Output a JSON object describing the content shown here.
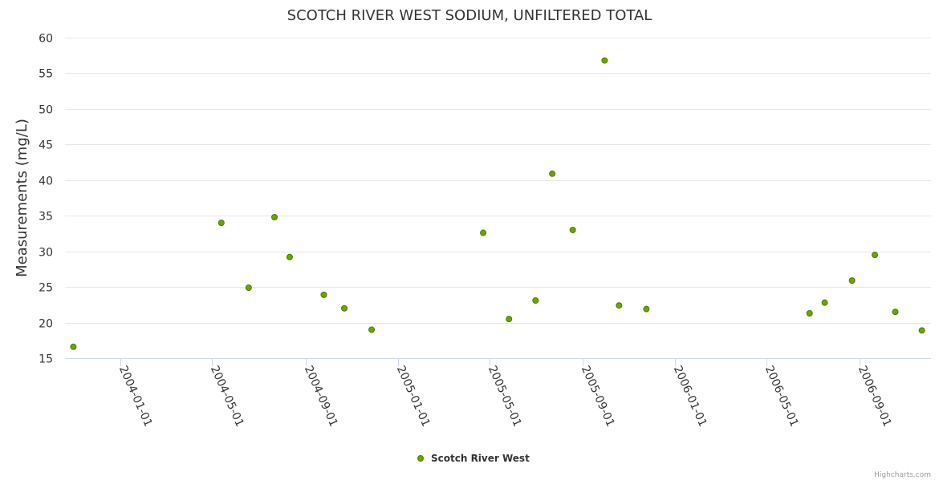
{
  "chart_data": {
    "type": "scatter",
    "title": "SCOTCH RIVER WEST SODIUM, UNFILTERED TOTAL",
    "xlabel": "",
    "ylabel": "Measurements (mg/L)",
    "ylim": [
      15,
      60
    ],
    "yticks": [
      15,
      20,
      25,
      30,
      35,
      40,
      45,
      50,
      55,
      60
    ],
    "xlim": [
      "2003-10-20",
      "2006-12-04"
    ],
    "xticks": [
      "2004-01-01",
      "2004-05-01",
      "2004-09-01",
      "2005-01-01",
      "2005-05-01",
      "2005-09-01",
      "2006-01-01",
      "2006-05-01",
      "2006-09-01"
    ],
    "grid": true,
    "legend": "bottom-center",
    "series": [
      {
        "name": "Scotch River West",
        "color": "#6aa600",
        "points": [
          {
            "x": "2003-10-31",
            "y": 16.6
          },
          {
            "x": "2004-05-13",
            "y": 34.0
          },
          {
            "x": "2004-06-18",
            "y": 24.9
          },
          {
            "x": "2004-07-22",
            "y": 34.8
          },
          {
            "x": "2004-08-11",
            "y": 29.2
          },
          {
            "x": "2004-09-25",
            "y": 23.9
          },
          {
            "x": "2004-10-22",
            "y": 22.0
          },
          {
            "x": "2004-11-27",
            "y": 19.0
          },
          {
            "x": "2005-04-23",
            "y": 32.6
          },
          {
            "x": "2005-05-27",
            "y": 20.5
          },
          {
            "x": "2005-07-01",
            "y": 23.1
          },
          {
            "x": "2005-07-23",
            "y": 40.9
          },
          {
            "x": "2005-08-19",
            "y": 33.0
          },
          {
            "x": "2005-09-30",
            "y": 56.8
          },
          {
            "x": "2005-10-19",
            "y": 22.4
          },
          {
            "x": "2005-11-24",
            "y": 21.9
          },
          {
            "x": "2006-06-27",
            "y": 21.3
          },
          {
            "x": "2006-07-17",
            "y": 22.8
          },
          {
            "x": "2006-08-22",
            "y": 25.9
          },
          {
            "x": "2006-09-21",
            "y": 29.5
          },
          {
            "x": "2006-10-18",
            "y": 21.5
          },
          {
            "x": "2006-11-22",
            "y": 18.9
          }
        ]
      }
    ]
  },
  "credits": "Highcharts.com"
}
